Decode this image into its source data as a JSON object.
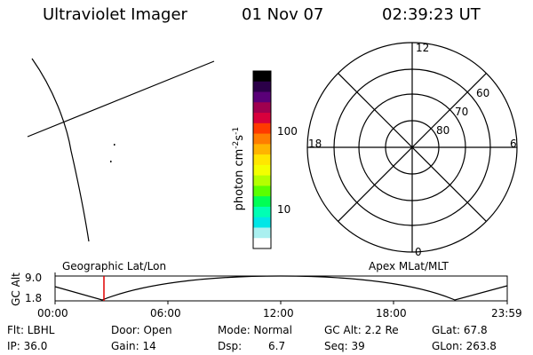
{
  "header": {
    "title": "Ultraviolet Imager",
    "date": "01 Nov 07",
    "time": "02:39:23 UT"
  },
  "colorbar": {
    "unit_label": "photon cm-2s-1",
    "tick_100": "100",
    "tick_10": "10",
    "colors": [
      "#000000",
      "#2b0048",
      "#5a0078",
      "#a0004f",
      "#d8003c",
      "#ff3a00",
      "#ff7d00",
      "#ffb400",
      "#ffe600",
      "#f3ff00",
      "#b4ff00",
      "#5aff00",
      "#00ff55",
      "#00ffb4",
      "#00e6e6",
      "#aaf0f0",
      "#ffffff"
    ]
  },
  "polar": {
    "label_12": "12",
    "label_18": "18",
    "label_6": "6",
    "label_0": "0",
    "ring_60": "60",
    "ring_70": "70",
    "ring_80": "80"
  },
  "timeline": {
    "left_label": "Geographic Lat/Lon",
    "right_label": "Apex MLat/MLT",
    "axis_label": "GC Alt",
    "y_top": "9.0",
    "y_bottom": "1.8",
    "ticks": [
      "00:00",
      "06:00",
      "12:00",
      "18:00",
      "23:59"
    ]
  },
  "info": {
    "flt": "Flt: LBHL",
    "ip": "IP: 36.0",
    "door": "Door: Open",
    "gain": "Gain: 14",
    "mode": "Mode: Normal",
    "dsp_label": "Dsp:",
    "dsp_value": "6.7",
    "gc_alt": "GC Alt: 2.2 Re",
    "seq": "Seq: 39",
    "glat": "GLat: 67.8",
    "glon": "GLon: 263.8"
  }
}
